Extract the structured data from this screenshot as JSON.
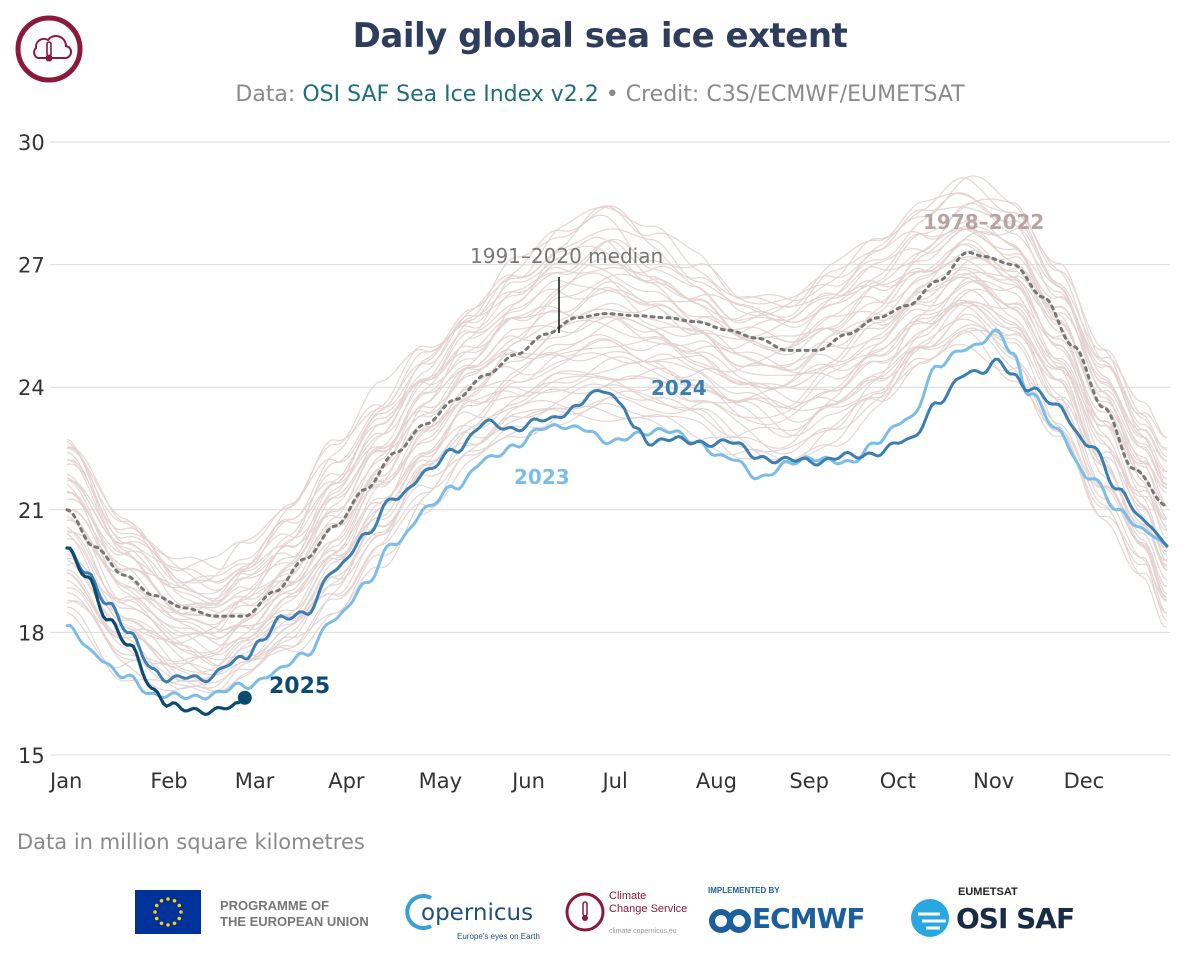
{
  "header": {
    "title": "Daily global sea ice extent",
    "subtitle_prefix": "Data: ",
    "subtitle_source": "OSI SAF Sea Ice Index v2.2",
    "subtitle_credit": " • Credit: C3S/ECMWF/EUMETSAT"
  },
  "footer": {
    "note": "Data in million square kilometres",
    "eu_line1": "PROGRAMME OF",
    "eu_line2": "THE EUROPEAN UNION",
    "copernicus": "opernicus",
    "copernicus_tag": "Europe's eyes on Earth",
    "ccs_line1": "Climate",
    "ccs_line2": "Change Service",
    "ccs_url": "climate.copernicus.eu",
    "ecmwf_impl": "IMPLEMENTED BY",
    "ecmwf": "ECMWF",
    "eumetsat": "EUMETSAT",
    "osisaf": "OSI SAF"
  },
  "colors": {
    "title": "#2e3d5c",
    "envelope": "#e2d2cf",
    "median": "#777777",
    "y2023": "#7cbde8",
    "y2024": "#3b7fb0",
    "y2025": "#0c4a70",
    "envelope_label": "#b8a5a3"
  },
  "chart_data": {
    "type": "line",
    "title": "Daily global sea ice extent",
    "ylabel": "",
    "xlabel": "",
    "ylim": [
      15,
      30
    ],
    "yticks": [
      "15",
      "18",
      "21",
      "24",
      "27",
      "30"
    ],
    "xlim": [
      1,
      366
    ],
    "xticks": [
      {
        "label": "Jan",
        "day": 1
      },
      {
        "label": "Feb",
        "day": 32
      },
      {
        "label": "Mar",
        "day": 60
      },
      {
        "label": "Apr",
        "day": 91
      },
      {
        "label": "May",
        "day": 121
      },
      {
        "label": "Jun",
        "day": 152
      },
      {
        "label": "Jul",
        "day": 182
      },
      {
        "label": "Aug",
        "day": 213
      },
      {
        "label": "Sep",
        "day": 244
      },
      {
        "label": "Oct",
        "day": 274
      },
      {
        "label": "Nov",
        "day": 305
      },
      {
        "label": "Dec",
        "day": 335
      }
    ],
    "grid": true,
    "envelope": {
      "name": "1978–2022",
      "x": [
        1,
        20,
        40,
        50,
        60,
        75,
        90,
        105,
        120,
        135,
        150,
        165,
        180,
        195,
        210,
        225,
        240,
        255,
        270,
        285,
        300,
        315,
        330,
        345,
        358,
        366
      ],
      "lower": [
        18.6,
        17.2,
        16.6,
        16.5,
        16.9,
        17.5,
        18.5,
        19.9,
        21.3,
        22.4,
        22.9,
        23.1,
        23.2,
        23.2,
        23.0,
        22.6,
        22.3,
        22.8,
        23.5,
        24.5,
        25.2,
        24.5,
        23.0,
        21.0,
        19.5,
        18.2
      ],
      "upper": [
        22.9,
        20.8,
        19.6,
        19.5,
        20.0,
        21.0,
        22.5,
        23.8,
        25.0,
        26.0,
        27.0,
        27.8,
        28.3,
        27.6,
        27.0,
        26.3,
        26.3,
        26.9,
        27.5,
        28.2,
        28.8,
        28.4,
        27.0,
        25.0,
        23.5,
        22.7
      ]
    },
    "series": [
      {
        "name": "1991–2020 median",
        "x": [
          1,
          10,
          20,
          30,
          40,
          50,
          60,
          70,
          80,
          90,
          100,
          110,
          120,
          130,
          140,
          150,
          160,
          170,
          180,
          190,
          200,
          210,
          220,
          230,
          240,
          250,
          260,
          270,
          280,
          290,
          300,
          305,
          315,
          325,
          335,
          345,
          355,
          366
        ],
        "y": [
          21.0,
          20.1,
          19.4,
          18.9,
          18.6,
          18.4,
          18.4,
          19.0,
          19.8,
          20.6,
          21.5,
          22.4,
          23.1,
          23.7,
          24.3,
          24.8,
          25.3,
          25.7,
          25.8,
          25.75,
          25.7,
          25.6,
          25.4,
          25.2,
          24.9,
          24.9,
          25.3,
          25.7,
          26.0,
          26.6,
          27.3,
          27.2,
          27.0,
          26.2,
          25.0,
          23.5,
          22.0,
          21.1
        ]
      },
      {
        "name": "2023",
        "x": [
          1,
          10,
          20,
          30,
          40,
          50,
          60,
          70,
          80,
          90,
          100,
          110,
          120,
          130,
          140,
          150,
          160,
          165,
          170,
          180,
          190,
          200,
          210,
          220,
          230,
          240,
          250,
          260,
          270,
          280,
          290,
          300,
          310,
          315,
          320,
          330,
          340,
          350,
          360,
          366
        ],
        "y": [
          18.1,
          17.5,
          16.9,
          16.5,
          16.4,
          16.5,
          16.7,
          17.0,
          17.5,
          18.3,
          19.2,
          20.2,
          21.0,
          21.6,
          22.2,
          22.6,
          23.0,
          23.1,
          23.0,
          22.7,
          22.8,
          23.0,
          22.6,
          22.3,
          21.8,
          22.1,
          22.3,
          22.1,
          22.7,
          23.2,
          24.5,
          25.0,
          25.3,
          24.8,
          23.9,
          22.9,
          21.8,
          21.0,
          20.4,
          20.1
        ]
      },
      {
        "name": "2024",
        "x": [
          1,
          8,
          15,
          22,
          30,
          35,
          40,
          48,
          55,
          60,
          65,
          72,
          80,
          90,
          100,
          110,
          120,
          130,
          140,
          150,
          160,
          170,
          175,
          180,
          185,
          190,
          195,
          200,
          210,
          220,
          230,
          240,
          250,
          260,
          270,
          280,
          290,
          300,
          305,
          310,
          315,
          320,
          330,
          340,
          350,
          360,
          366
        ],
        "y": [
          20.0,
          19.4,
          18.7,
          17.9,
          17.1,
          16.8,
          16.9,
          16.9,
          17.2,
          17.4,
          17.8,
          18.3,
          18.5,
          19.5,
          20.4,
          21.3,
          21.9,
          22.5,
          23.1,
          23.0,
          23.2,
          23.5,
          23.8,
          23.95,
          23.6,
          22.9,
          22.6,
          22.8,
          22.6,
          22.7,
          22.3,
          22.2,
          22.2,
          22.3,
          22.4,
          22.7,
          23.6,
          24.4,
          24.4,
          24.6,
          24.3,
          24.0,
          23.5,
          22.6,
          21.5,
          20.6,
          20.1
        ]
      },
      {
        "name": "2025",
        "x": [
          1,
          8,
          15,
          22,
          30,
          35,
          40,
          45,
          50,
          55,
          58,
          60
        ],
        "y": [
          20.0,
          19.3,
          18.3,
          17.6,
          16.6,
          16.2,
          16.1,
          16.1,
          16.1,
          16.15,
          16.2,
          16.4
        ]
      }
    ],
    "annotations": {
      "median_label": "1991–2020 median",
      "envelope_label": "1978–2022",
      "label_2023": "2023",
      "label_2024": "2024",
      "label_2025": "2025"
    }
  }
}
